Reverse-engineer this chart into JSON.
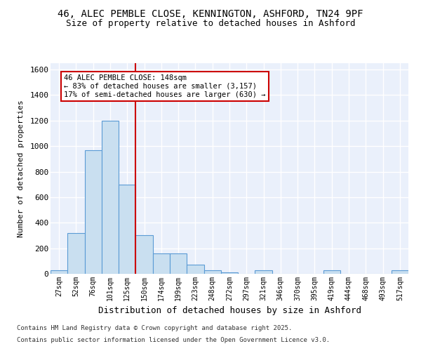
{
  "title_line1": "46, ALEC PEMBLE CLOSE, KENNINGTON, ASHFORD, TN24 9PF",
  "title_line2": "Size of property relative to detached houses in Ashford",
  "xlabel": "Distribution of detached houses by size in Ashford",
  "ylabel": "Number of detached properties",
  "categories": [
    "27sqm",
    "52sqm",
    "76sqm",
    "101sqm",
    "125sqm",
    "150sqm",
    "174sqm",
    "199sqm",
    "223sqm",
    "248sqm",
    "272sqm",
    "297sqm",
    "321sqm",
    "346sqm",
    "370sqm",
    "395sqm",
    "419sqm",
    "444sqm",
    "468sqm",
    "493sqm",
    "517sqm"
  ],
  "values": [
    30,
    320,
    970,
    1200,
    700,
    300,
    160,
    160,
    70,
    25,
    10,
    0,
    25,
    0,
    0,
    0,
    25,
    0,
    0,
    0,
    25
  ],
  "bar_color": "#c9dff0",
  "bar_edge_color": "#5b9bd5",
  "vline_x_index": 4.5,
  "vline_color": "#cc0000",
  "annotation_title": "46 ALEC PEMBLE CLOSE: 148sqm",
  "annotation_line1": "← 83% of detached houses are smaller (3,157)",
  "annotation_line2": "17% of semi-detached houses are larger (630) →",
  "annotation_box_color": "#cc0000",
  "ylim": [
    0,
    1650
  ],
  "yticks": [
    0,
    200,
    400,
    600,
    800,
    1000,
    1200,
    1400,
    1600
  ],
  "background_color": "#eaf0fb",
  "grid_color": "#ffffff",
  "footer_line1": "Contains HM Land Registry data © Crown copyright and database right 2025.",
  "footer_line2": "Contains public sector information licensed under the Open Government Licence v3.0."
}
